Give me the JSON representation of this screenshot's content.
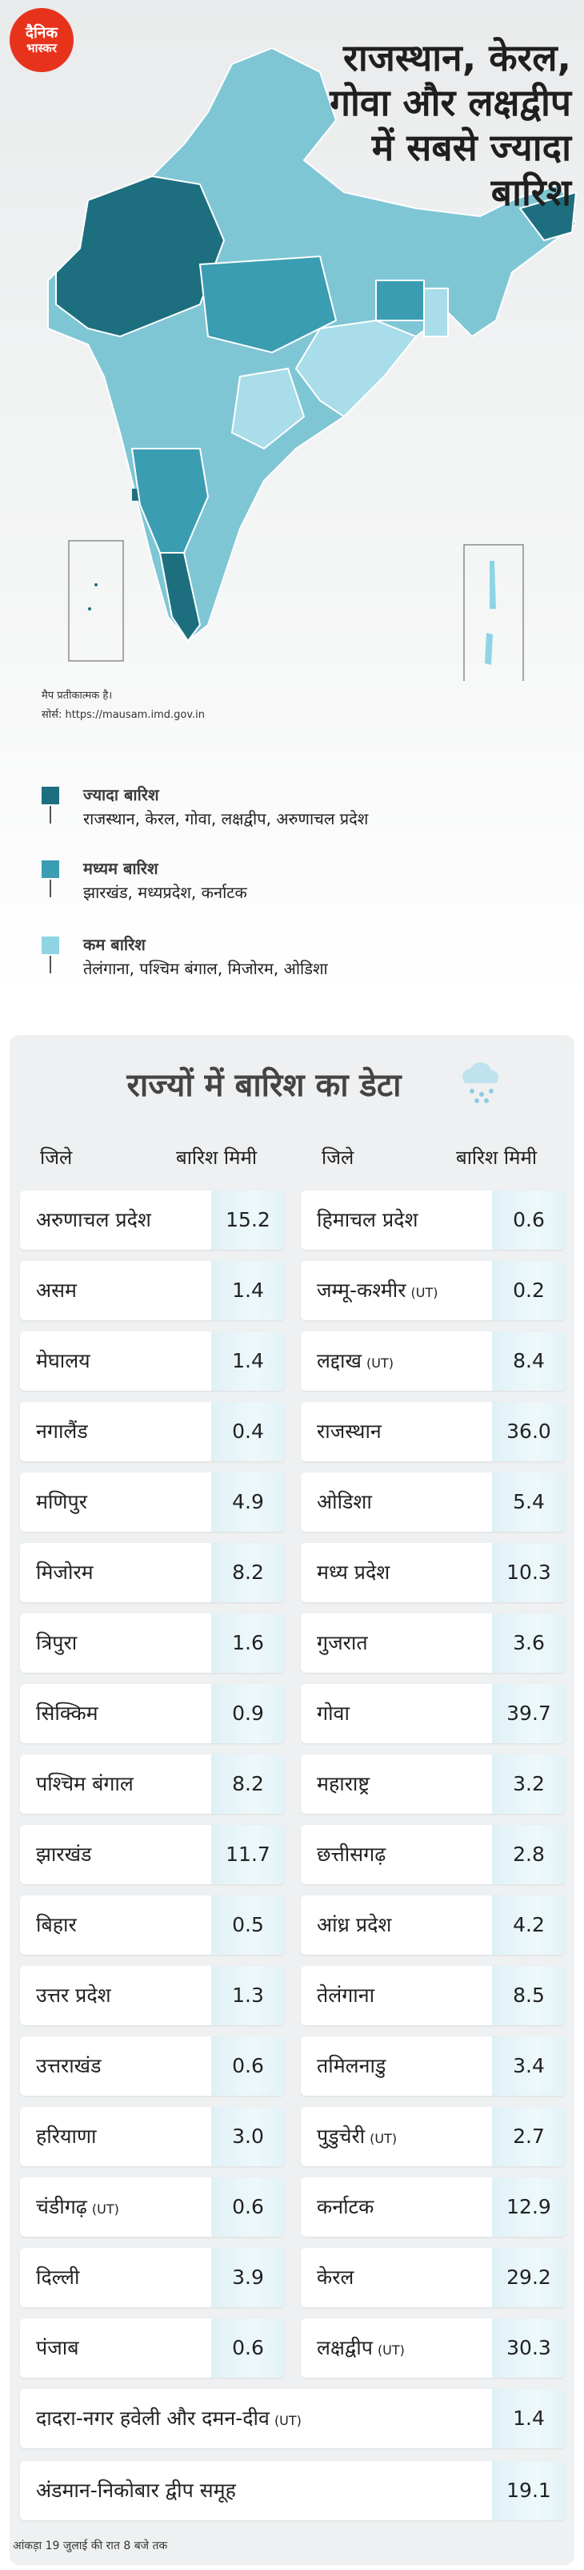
{
  "header": {
    "logo": [
      "दैनिक",
      "भास्कर"
    ],
    "title": [
      "राजस्थान, केरल,",
      "गोवा और लक्षद्वीप",
      "में सबसे ज्यादा",
      "बारिश"
    ]
  },
  "map_note": "मैप प्रतीकात्मक है।",
  "source": "सोर्स: https://mausam.imd.gov.in",
  "legend": [
    {
      "title": "ज्यादा बारिश",
      "states": "राजस्थान, केरल, गोवा, लक्षद्वीप, अरुणाचल प्रदेश",
      "color": "#1d6f80"
    },
    {
      "title": "मध्यम बारिश",
      "states": "झारखंड, मध्यप्रदेश, कर्नाटक",
      "color": "#3a9db2"
    },
    {
      "title": "कम बारिश",
      "states": "तेलंगाना, पश्चिम बंगाल, मिजोरम, ओडिशा",
      "color": "#8fd4e4"
    }
  ],
  "table": {
    "title": "राज्यों में बारिश का डेटा",
    "columns": [
      "जिले",
      "बारिश मिमी"
    ],
    "left_rows": [
      {
        "name": "अरुणाचल प्रदेश",
        "value": "15.2"
      },
      {
        "name": "असम",
        "value": "1.4"
      },
      {
        "name": "मेघालय",
        "value": "1.4"
      },
      {
        "name": "नगालैंड",
        "value": "0.4"
      },
      {
        "name": "मणिपुर",
        "value": "4.9"
      },
      {
        "name": "मिजोरम",
        "value": "8.2"
      },
      {
        "name": "त्रिपुरा",
        "value": "1.6"
      },
      {
        "name": "सिक्किम",
        "value": "0.9"
      },
      {
        "name": "पश्चिम बंगाल",
        "value": "8.2"
      },
      {
        "name": "झारखंड",
        "value": "11.7"
      },
      {
        "name": "बिहार",
        "value": "0.5"
      },
      {
        "name": "उत्तर प्रदेश",
        "value": "1.3"
      },
      {
        "name": "उत्तराखंड",
        "value": "0.6"
      },
      {
        "name": "हरियाणा",
        "value": "3.0"
      },
      {
        "name": "चंडीगढ़",
        "tag": "(UT)",
        "value": "0.6"
      },
      {
        "name": "दिल्ली",
        "value": "3.9"
      },
      {
        "name": "पंजाब",
        "value": "0.6"
      }
    ],
    "right_rows": [
      {
        "name": "हिमाचल प्रदेश",
        "value": "0.6"
      },
      {
        "name": "जम्मू-कश्मीर",
        "tag": "(UT)",
        "value": "0.2"
      },
      {
        "name": "लद्दाख",
        "tag": "(UT)",
        "value": "8.4"
      },
      {
        "name": "राजस्थान",
        "value": "36.0"
      },
      {
        "name": "ओडिशा",
        "value": "5.4"
      },
      {
        "name": "मध्य प्रदेश",
        "value": "10.3"
      },
      {
        "name": "गुजरात",
        "value": "3.6"
      },
      {
        "name": "गोवा",
        "value": "39.7"
      },
      {
        "name": "महाराष्ट्र",
        "value": "3.2"
      },
      {
        "name": "छत्तीसगढ़",
        "value": "2.8"
      },
      {
        "name": "आंध्र प्रदेश",
        "value": "4.2"
      },
      {
        "name": "तेलंगाना",
        "value": "8.5"
      },
      {
        "name": "तमिलनाडु",
        "value": "3.4"
      },
      {
        "name": "पुडुचेरी",
        "tag": "(UT)",
        "value": "2.7"
      },
      {
        "name": "कर्नाटक",
        "value": "12.9"
      },
      {
        "name": "केरल",
        "value": "29.2"
      },
      {
        "name": "लक्षद्वीप",
        "tag": "(UT)",
        "value": "30.3"
      }
    ],
    "full_rows": [
      {
        "name": "दादरा-नगर हवेली और दमन-दीव",
        "tag": "(UT)",
        "value": "1.4"
      },
      {
        "name": "अंडमान-निकोबार द्वीप समूह",
        "value": "19.1"
      }
    ]
  },
  "footer": "आंकड़ा 19 जुलाई की रात 8 बजे तक"
}
